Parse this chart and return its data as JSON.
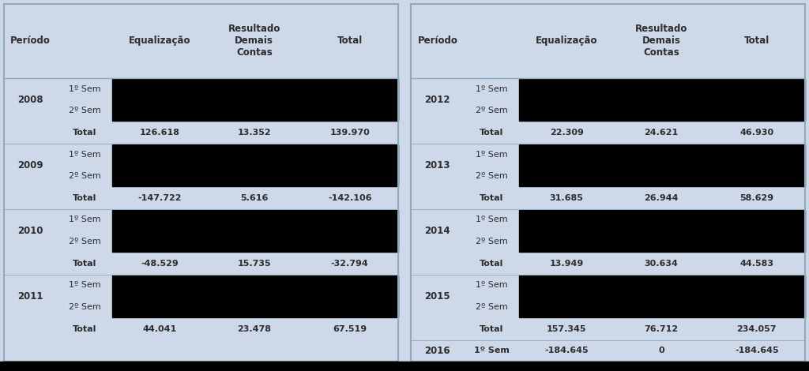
{
  "bg_color": "#cdd8e8",
  "black_color": "#000000",
  "text_color": "#2d2d2d",
  "figsize": [
    10.24,
    4.7
  ],
  "dpi": 100,
  "left_table": {
    "rows": [
      {
        "year": "2008",
        "eq": "126.618",
        "rdc": "13.352",
        "total": "139.970"
      },
      {
        "year": "2009",
        "eq": "-147.722",
        "rdc": "5.616",
        "total": "-142.106"
      },
      {
        "year": "2010",
        "eq": "-48.529",
        "rdc": "15.735",
        "total": "-32.794"
      },
      {
        "year": "2011",
        "eq": "44.041",
        "rdc": "23.478",
        "total": "67.519"
      }
    ]
  },
  "right_table": {
    "rows": [
      {
        "year": "2012",
        "sem1_only": false,
        "eq": "22.309",
        "rdc": "24.621",
        "total": "46.930"
      },
      {
        "year": "2013",
        "sem1_only": false,
        "eq": "31.685",
        "rdc": "26.944",
        "total": "58.629"
      },
      {
        "year": "2014",
        "sem1_only": false,
        "eq": "13.949",
        "rdc": "30.634",
        "total": "44.583"
      },
      {
        "year": "2015",
        "sem1_only": false,
        "eq": "157.345",
        "rdc": "76.712",
        "total": "234.057"
      },
      {
        "year": "2016",
        "sem1_only": true,
        "eq": "-184.645",
        "rdc": "0",
        "total": "-184.645"
      }
    ]
  }
}
